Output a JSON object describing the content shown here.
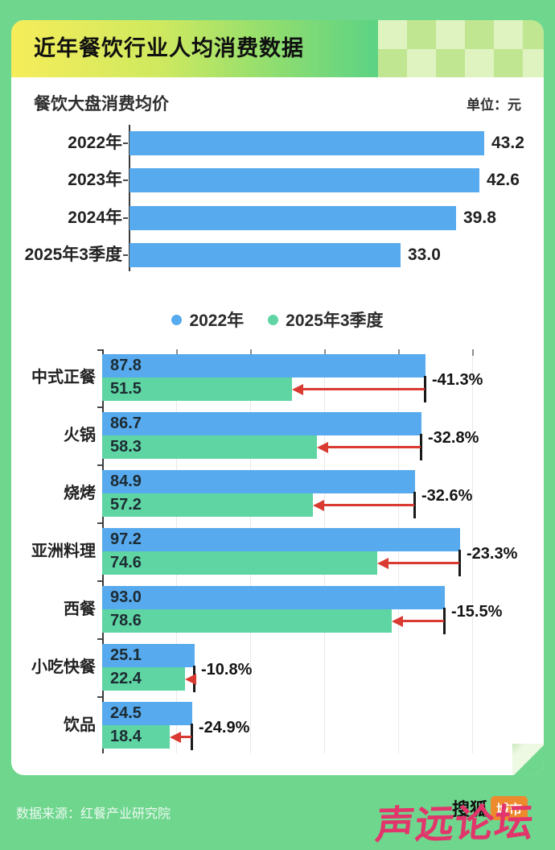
{
  "header": {
    "title": "近年餐饮行业人均消费数据"
  },
  "colors": {
    "background_green": "#6fd68e",
    "bar_blue": "#57aaed",
    "bar_green": "#5fd5a3",
    "arrow_red": "#d93a31",
    "header_gradient_left": "#f6ed5a",
    "header_gradient_right": "#5ed383",
    "checker_light": "#def3bf",
    "checker_dark": "#c0e692",
    "badge_orange": "#ee8a2e",
    "watermark_pink": "#e2356b"
  },
  "chart_data": [
    {
      "type": "bar",
      "orientation": "horizontal",
      "title": "餐饮大盘消费均价",
      "unit_label": "单位：元",
      "categories": [
        "2022年",
        "2023年",
        "2024年",
        "2025年3季度"
      ],
      "values": [
        43.2,
        42.6,
        39.8,
        33.0
      ],
      "xlim": [
        0,
        50
      ],
      "grid": false,
      "bar_color": "#57aaed"
    },
    {
      "type": "bar",
      "orientation": "horizontal",
      "title": "",
      "categories": [
        "中式正餐",
        "火锅",
        "烧烤",
        "亚洲料理",
        "西餐",
        "小吃快餐",
        "饮品"
      ],
      "series": [
        {
          "name": "2022年",
          "color": "#57aaed",
          "values": [
            87.8,
            86.7,
            84.9,
            97.2,
            93.0,
            25.1,
            24.5
          ]
        },
        {
          "name": "2025年3季度",
          "color": "#5fd5a3",
          "values": [
            51.5,
            58.3,
            57.2,
            74.6,
            78.6,
            22.4,
            18.4
          ]
        }
      ],
      "change_labels": [
        "-41.3%",
        "-32.8%",
        "-32.6%",
        "-23.3%",
        "-15.5%",
        "-10.8%",
        "-24.9%"
      ],
      "xlim": [
        0,
        120
      ],
      "grid_step": 20,
      "grid": true,
      "legend_position": "top"
    }
  ],
  "footer": {
    "source": "数据来源：红餐产业研究院",
    "logo_text": "搜狐",
    "logo_badge": "城市",
    "watermark": "声远论坛"
  }
}
